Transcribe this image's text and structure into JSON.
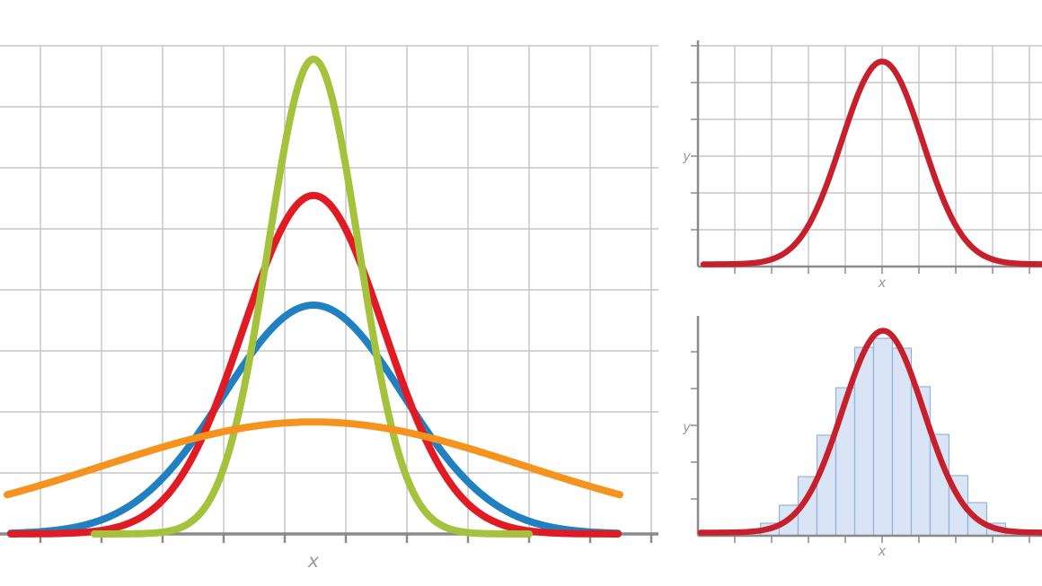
{
  "figure": {
    "description": "Normal distribution figure: left panel compares four gaussian curves with equal mean and different variances; top-right panel shows a single gaussian curve on a grid; bottom-right panel shows a gaussian curve fitted over a histogram of samples."
  },
  "colors": {
    "background": "#ffffff",
    "grid": "#c5c5c5",
    "axis": "#8a8a8a",
    "tick": "#8a8a8a",
    "label": "#9b9b9b",
    "histogram_fill": "#d9e4f4",
    "histogram_border": "#94b3da"
  },
  "chart_data": [
    {
      "id": "variance-comparison",
      "type": "line",
      "title": "",
      "xlabel": "x",
      "ylabel": "",
      "grid": true,
      "legend": false,
      "x_range": [
        -5,
        5
      ],
      "y_range": [
        0,
        1.1
      ],
      "description": "Four normal distributions, same mean, increasing standard deviation",
      "series": [
        {
          "name": "wide-blue",
          "color": "#2080c2",
          "mean": 0,
          "sigma": 1.47,
          "peak": 0.482
        },
        {
          "name": "medium-red",
          "color": "#e01b24",
          "mean": 0,
          "sigma": 1.15,
          "peak": 0.713
        },
        {
          "name": "narrow-green",
          "color": "#a4c23c",
          "mean": 0,
          "sigma": 0.74,
          "peak": 1.0
        },
        {
          "name": "widest-orange",
          "color": "#f6921e",
          "mean": 0,
          "sigma": 3.46,
          "peak": 0.236
        }
      ]
    },
    {
      "id": "single-normal-curve",
      "type": "line",
      "title": "",
      "xlabel": "x",
      "ylabel": "y",
      "grid": true,
      "legend": false,
      "x_range": [
        -5,
        4.35
      ],
      "y_range": [
        0,
        1.1
      ],
      "description": "Single normal distribution curve on gridded axes",
      "series": [
        {
          "name": "normal-curve-red",
          "color": "#c7202c",
          "mean": 0,
          "sigma": 1.1,
          "peak": 1.0
        }
      ]
    },
    {
      "id": "histogram-with-normal-fit",
      "type": "line",
      "title": "",
      "xlabel": "x",
      "ylabel": "y",
      "grid": false,
      "legend": false,
      "x_range": [
        -5.02,
        4.32
      ],
      "y_range": [
        0,
        1.1
      ],
      "description": "Histogram of samples with fitted normal curve",
      "series": [
        {
          "name": "fitted-normal-curve-red",
          "color": "#c7202c",
          "mean": 0,
          "sigma": 1.1,
          "peak": 1.0
        }
      ],
      "histogram": {
        "bin_width": 0.512,
        "fill": "#d9e4f4",
        "border": "#94b3da",
        "values": [
          0.018,
          0.062,
          0.151,
          0.293,
          0.498,
          0.733,
          0.933,
          0.978,
          0.929,
          0.738,
          0.502,
          0.298,
          0.164,
          0.062,
          0.022
        ]
      }
    }
  ]
}
